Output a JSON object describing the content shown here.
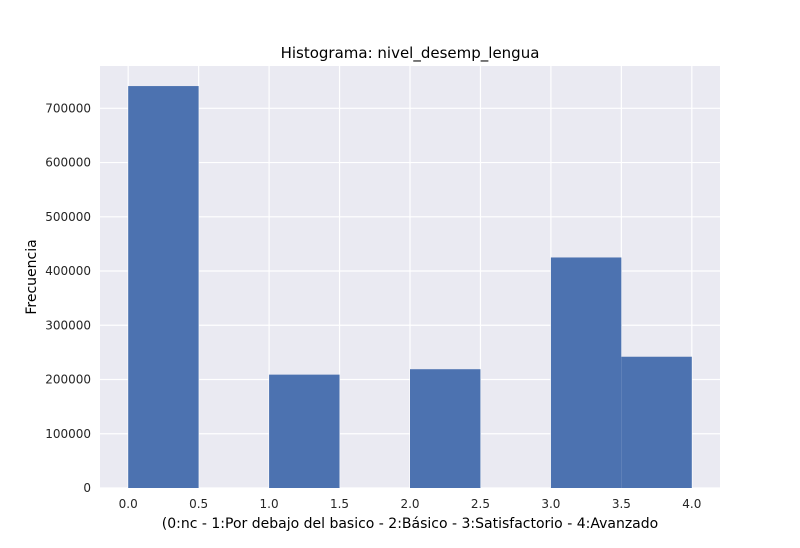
{
  "chart_data": {
    "type": "bar",
    "title": "Histograma: nivel_desemp_lengua",
    "xlabel": "(0:nc - 1:Por debajo del basico - 2:Básico - 3:Satisfactorio - 4:Avanzado",
    "ylabel": "Frecuencia",
    "xlim": [
      -0.2,
      4.2
    ],
    "ylim": [
      0,
      778000
    ],
    "x_ticks": [
      "0.0",
      "0.5",
      "1.0",
      "1.5",
      "2.0",
      "2.5",
      "3.0",
      "3.5",
      "4.0"
    ],
    "x_tick_values": [
      0,
      0.5,
      1,
      1.5,
      2,
      2.5,
      3,
      3.5,
      4
    ],
    "y_ticks": [
      "0",
      "100000",
      "200000",
      "300000",
      "400000",
      "500000",
      "600000",
      "700000"
    ],
    "y_tick_values": [
      0,
      100000,
      200000,
      300000,
      400000,
      500000,
      600000,
      700000
    ],
    "bins": [
      {
        "start": 0.0,
        "end": 0.5,
        "value": 741000
      },
      {
        "start": 0.5,
        "end": 1.0,
        "value": 0
      },
      {
        "start": 1.0,
        "end": 1.5,
        "value": 209000
      },
      {
        "start": 1.5,
        "end": 2.0,
        "value": 0
      },
      {
        "start": 2.0,
        "end": 2.5,
        "value": 219000
      },
      {
        "start": 2.5,
        "end": 3.0,
        "value": 0
      },
      {
        "start": 3.0,
        "end": 3.5,
        "value": 425000
      },
      {
        "start": 3.5,
        "end": 4.0,
        "value": 242000
      }
    ],
    "grid": true,
    "colors": {
      "bar": "#4c72b0",
      "background": "#eaeaf2",
      "grid": "#ffffff"
    }
  }
}
